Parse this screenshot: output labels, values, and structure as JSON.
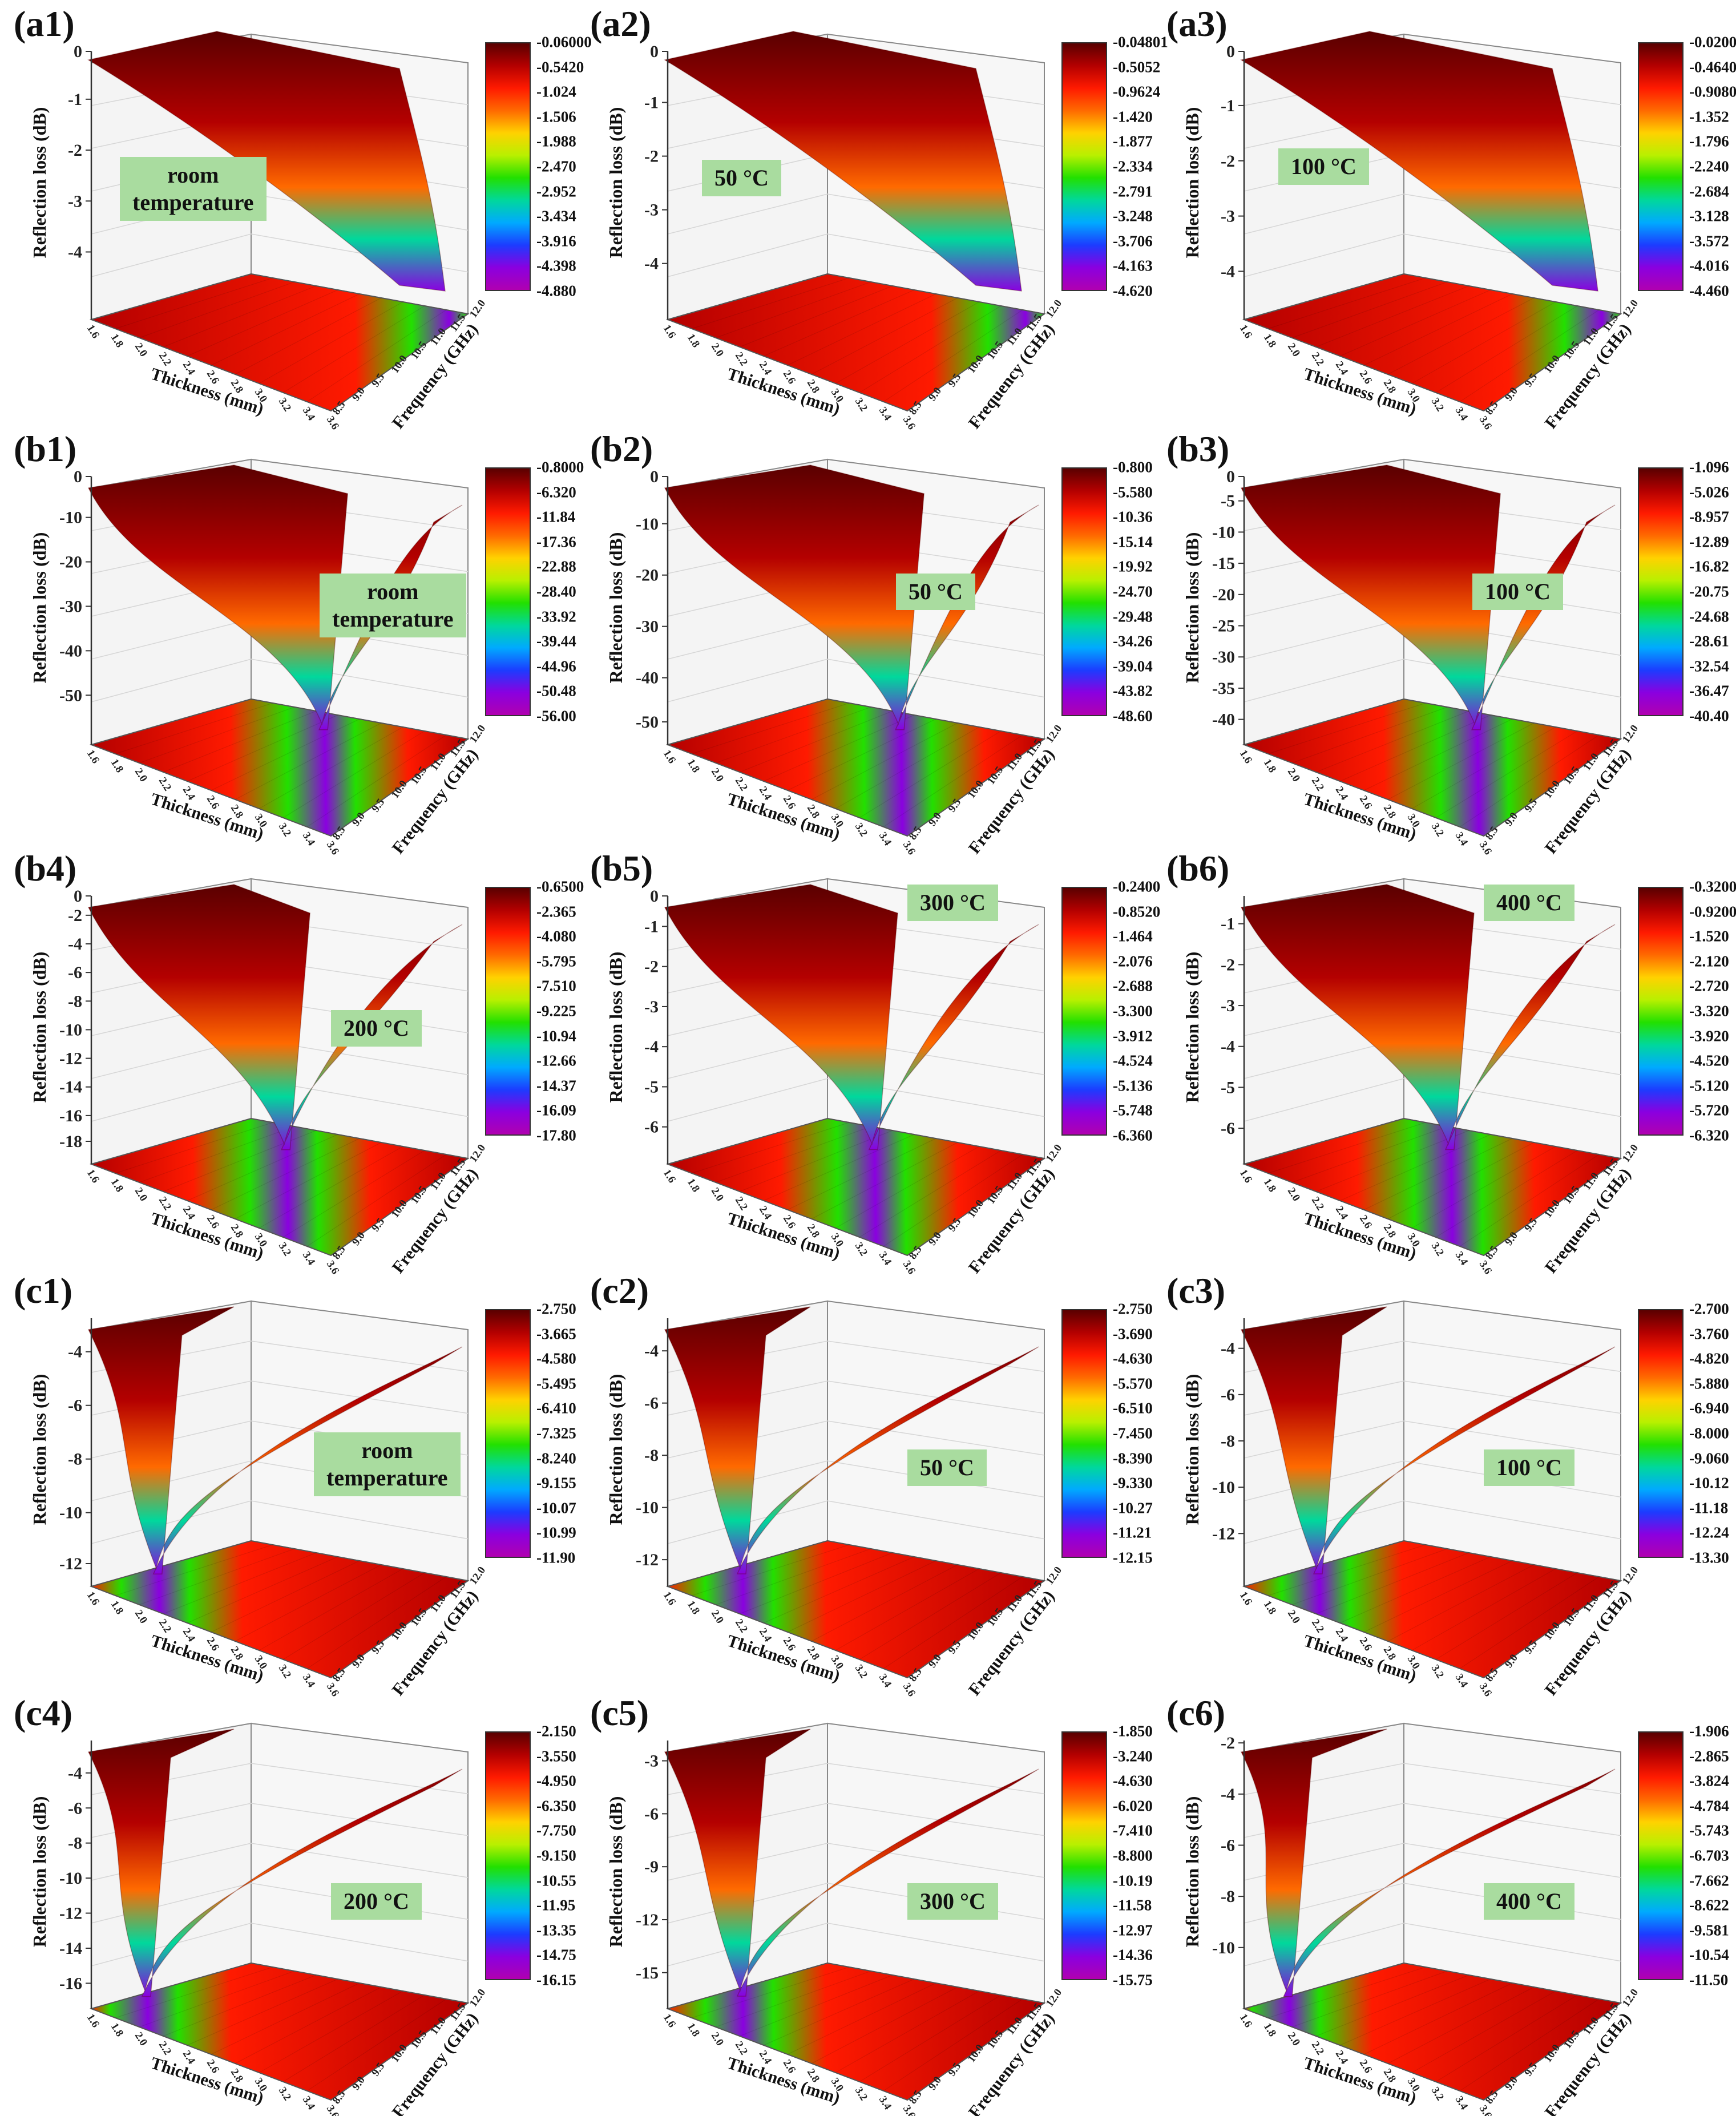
{
  "figure": {
    "colors": {
      "scale": [
        "#5a0000",
        "#b40000",
        "#ff1a00",
        "#ff6a00",
        "#ffd200",
        "#b8f000",
        "#22e000",
        "#00d89c",
        "#00aaff",
        "#1c3cff",
        "#8a00e0",
        "#b000b0"
      ],
      "badge_bg": "#a9dc9f"
    }
  },
  "chart_data": [
    {
      "id": "a1",
      "label": "(a1)",
      "type": "surface3d",
      "badge": [
        "room",
        "temperature"
      ],
      "colorbar": [
        "-0.06000",
        "-0.5420",
        "-1.024",
        "-1.506",
        "-1.988",
        "-2.470",
        "-2.952",
        "-3.434",
        "-3.916",
        "-4.398",
        "-4.880"
      ],
      "zticks": [
        "0",
        "-1",
        "-2",
        "-3",
        "-4"
      ],
      "zlim": [
        -4.88,
        -0.06
      ],
      "thickness_ticks": [
        "1.6",
        "1.8",
        "2.0",
        "2.2",
        "2.4",
        "2.6",
        "2.8",
        "3.0",
        "3.2",
        "3.4",
        "3.6"
      ],
      "frequency_ticks": [
        "8.5",
        "9.0",
        "9.5",
        "10.0",
        "10.5",
        "11.0",
        "11.5",
        "12.0"
      ],
      "xlabel": "Thickness (mm)",
      "ylabel": "Frequency (GHz)",
      "zlabel": "Reflection loss (dB)"
    },
    {
      "id": "a2",
      "label": "(a2)",
      "type": "surface3d",
      "badge": [
        "50 °C"
      ],
      "colorbar": [
        "-0.04801",
        "-0.5052",
        "-0.9624",
        "-1.420",
        "-1.877",
        "-2.334",
        "-2.791",
        "-3.248",
        "-3.706",
        "-4.163",
        "-4.620"
      ],
      "zticks": [
        "0",
        "-1",
        "-2",
        "-3",
        "-4"
      ],
      "zlim": [
        -4.62,
        -0.048
      ],
      "thickness_ticks": [
        "1.6",
        "1.8",
        "2.0",
        "2.2",
        "2.4",
        "2.6",
        "2.8",
        "3.0",
        "3.2",
        "3.4",
        "3.6"
      ],
      "frequency_ticks": [
        "8.5",
        "9.0",
        "9.5",
        "10.0",
        "10.5",
        "11.0",
        "11.5",
        "12.0"
      ],
      "xlabel": "Thickness (mm)",
      "ylabel": "Frequency (GHz)",
      "zlabel": "Reflection loss (dB)"
    },
    {
      "id": "a3",
      "label": "(a3)",
      "type": "surface3d",
      "badge": [
        "100 °C"
      ],
      "colorbar": [
        "-0.02000",
        "-0.4640",
        "-0.9080",
        "-1.352",
        "-1.796",
        "-2.240",
        "-2.684",
        "-3.128",
        "-3.572",
        "-4.016",
        "-4.460"
      ],
      "zticks": [
        "0",
        "-1",
        "-2",
        "-3",
        "-4"
      ],
      "zlim": [
        -4.46,
        -0.02
      ],
      "thickness_ticks": [
        "1.6",
        "1.8",
        "2.0",
        "2.2",
        "2.4",
        "2.6",
        "2.8",
        "3.0",
        "3.2",
        "3.4",
        "3.6"
      ],
      "frequency_ticks": [
        "8.5",
        "9.0",
        "9.5",
        "10.0",
        "10.5",
        "11.0",
        "11.5",
        "12.0"
      ],
      "xlabel": "Thickness (mm)",
      "ylabel": "Frequency (GHz)",
      "zlabel": "Reflection loss (dB)"
    },
    {
      "id": "b1",
      "label": "(b1)",
      "type": "surface3d",
      "badge": [
        "room",
        "temperature"
      ],
      "colorbar": [
        "-0.8000",
        "-6.320",
        "-11.84",
        "-17.36",
        "-22.88",
        "-28.40",
        "-33.92",
        "-39.44",
        "-44.96",
        "-50.48",
        "-56.00"
      ],
      "zticks": [
        "0",
        "-10",
        "-20",
        "-30",
        "-40",
        "-50"
      ],
      "zlim": [
        -56,
        -0.8
      ],
      "thickness_ticks": [
        "1.6",
        "1.8",
        "2.0",
        "2.2",
        "2.4",
        "2.6",
        "2.8",
        "3.0",
        "3.2",
        "3.4",
        "3.6"
      ],
      "frequency_ticks": [
        "8.5",
        "9.0",
        "9.5",
        "10.0",
        "10.5",
        "11.0",
        "11.5",
        "12.0"
      ],
      "xlabel": "Thickness (mm)",
      "ylabel": "Frequency (GHz)",
      "zlabel": "Reflection loss (dB)"
    },
    {
      "id": "b2",
      "label": "(b2)",
      "type": "surface3d",
      "badge": [
        "50 °C"
      ],
      "colorbar": [
        "-0.800",
        "-5.580",
        "-10.36",
        "-15.14",
        "-19.92",
        "-24.70",
        "-29.48",
        "-34.26",
        "-39.04",
        "-43.82",
        "-48.60"
      ],
      "zticks": [
        "0",
        "-10",
        "-20",
        "-30",
        "-40",
        "-50"
      ],
      "zlim": [
        -48.6,
        -0.8
      ],
      "thickness_ticks": [
        "1.6",
        "1.8",
        "2.0",
        "2.2",
        "2.4",
        "2.6",
        "2.8",
        "3.0",
        "3.2",
        "3.4",
        "3.6"
      ],
      "frequency_ticks": [
        "8.5",
        "9.0",
        "9.5",
        "10.0",
        "10.5",
        "11.0",
        "11.5",
        "12.0"
      ],
      "xlabel": "Thickness (mm)",
      "ylabel": "Frequency (GHz)",
      "zlabel": "Reflection loss (dB)"
    },
    {
      "id": "b3",
      "label": "(b3)",
      "type": "surface3d",
      "badge": [
        "100 °C"
      ],
      "colorbar": [
        "-1.096",
        "-5.026",
        "-8.957",
        "-12.89",
        "-16.82",
        "-20.75",
        "-24.68",
        "-28.61",
        "-32.54",
        "-36.47",
        "-40.40"
      ],
      "zticks": [
        "0",
        "-5",
        "-10",
        "-15",
        "-20",
        "-25",
        "-30",
        "-35",
        "-40"
      ],
      "zlim": [
        -40.4,
        -1.096
      ],
      "thickness_ticks": [
        "1.6",
        "1.8",
        "2.0",
        "2.2",
        "2.4",
        "2.6",
        "2.8",
        "3.0",
        "3.2",
        "3.4",
        "3.6"
      ],
      "frequency_ticks": [
        "8.5",
        "9.0",
        "9.5",
        "10.0",
        "10.5",
        "11.0",
        "11.5",
        "12.0"
      ],
      "xlabel": "Thickness (mm)",
      "ylabel": "Frequency (GHz)",
      "zlabel": "Reflection loss (dB)"
    },
    {
      "id": "b4",
      "label": "(b4)",
      "type": "surface3d",
      "badge": [
        "200 °C"
      ],
      "colorbar": [
        "-0.6500",
        "-2.365",
        "-4.080",
        "-5.795",
        "-7.510",
        "-9.225",
        "-10.94",
        "-12.66",
        "-14.37",
        "-16.09",
        "-17.80"
      ],
      "zticks": [
        "0",
        "-2",
        "-4",
        "-6",
        "-8",
        "-10",
        "-12",
        "-14",
        "-16",
        "-18"
      ],
      "zlim": [
        -17.8,
        -0.65
      ],
      "thickness_ticks": [
        "1.6",
        "1.8",
        "2.0",
        "2.2",
        "2.4",
        "2.6",
        "2.8",
        "3.0",
        "3.2",
        "3.4",
        "3.6"
      ],
      "frequency_ticks": [
        "8.5",
        "9.0",
        "9.5",
        "10.0",
        "10.5",
        "11.0",
        "11.5",
        "12.0"
      ],
      "xlabel": "Thickness (mm)",
      "ylabel": "Frequency (GHz)",
      "zlabel": "Reflection loss (dB)"
    },
    {
      "id": "b5",
      "label": "(b5)",
      "type": "surface3d",
      "badge": [
        "300 °C"
      ],
      "colorbar": [
        "-0.2400",
        "-0.8520",
        "-1.464",
        "-2.076",
        "-2.688",
        "-3.300",
        "-3.912",
        "-4.524",
        "-5.136",
        "-5.748",
        "-6.360"
      ],
      "zticks": [
        "0",
        "-1",
        "-2",
        "-3",
        "-4",
        "-5",
        "-6"
      ],
      "zlim": [
        -6.36,
        -0.24
      ],
      "thickness_ticks": [
        "1.6",
        "1.8",
        "2.0",
        "2.2",
        "2.4",
        "2.6",
        "2.8",
        "3.0",
        "3.2",
        "3.4",
        "3.6"
      ],
      "frequency_ticks": [
        "8.5",
        "9.0",
        "9.5",
        "10.0",
        "10.5",
        "11.0",
        "11.5",
        "12.0"
      ],
      "xlabel": "Thickness (mm)",
      "ylabel": "Frequency (GHz)",
      "zlabel": "Reflection loss (dB)"
    },
    {
      "id": "b6",
      "label": "(b6)",
      "type": "surface3d",
      "badge": [
        "400 °C"
      ],
      "colorbar": [
        "-0.3200",
        "-0.9200",
        "-1.520",
        "-2.120",
        "-2.720",
        "-3.320",
        "-3.920",
        "-4.520",
        "-5.120",
        "-5.720",
        "-6.320"
      ],
      "zticks": [
        "-1",
        "-2",
        "-3",
        "-4",
        "-5",
        "-6"
      ],
      "zlim": [
        -6.32,
        -0.32
      ],
      "thickness_ticks": [
        "1.6",
        "1.8",
        "2.0",
        "2.2",
        "2.4",
        "2.6",
        "2.8",
        "3.0",
        "3.2",
        "3.4",
        "3.6"
      ],
      "frequency_ticks": [
        "8.5",
        "9.0",
        "9.5",
        "10.0",
        "10.5",
        "11.0",
        "11.5",
        "12.0"
      ],
      "xlabel": "Thickness (mm)",
      "ylabel": "Frequency (GHz)",
      "zlabel": "Reflection loss (dB)"
    },
    {
      "id": "c1",
      "label": "(c1)",
      "type": "surface3d",
      "badge": [
        "room",
        "temperature"
      ],
      "colorbar": [
        "-2.750",
        "-3.665",
        "-4.580",
        "-5.495",
        "-6.410",
        "-7.325",
        "-8.240",
        "-9.155",
        "-10.07",
        "-10.99",
        "-11.90"
      ],
      "zticks": [
        "-4",
        "-6",
        "-8",
        "-10",
        "-12"
      ],
      "zlim": [
        -11.9,
        -2.75
      ],
      "thickness_ticks": [
        "1.6",
        "1.8",
        "2.0",
        "2.2",
        "2.4",
        "2.6",
        "2.8",
        "3.0",
        "3.2",
        "3.4",
        "3.6"
      ],
      "frequency_ticks": [
        "8.5",
        "9.0",
        "9.5",
        "10.0",
        "10.5",
        "11.0",
        "11.5",
        "12.0"
      ],
      "xlabel": "Thickness (mm)",
      "ylabel": "Frequency (GHz)",
      "zlabel": "Reflection loss (dB)"
    },
    {
      "id": "c2",
      "label": "(c2)",
      "type": "surface3d",
      "badge": [
        "50 °C"
      ],
      "colorbar": [
        "-2.750",
        "-3.690",
        "-4.630",
        "-5.570",
        "-6.510",
        "-7.450",
        "-8.390",
        "-9.330",
        "-10.27",
        "-11.21",
        "-12.15"
      ],
      "zticks": [
        "-4",
        "-6",
        "-8",
        "-10",
        "-12"
      ],
      "zlim": [
        -12.15,
        -2.75
      ],
      "thickness_ticks": [
        "1.6",
        "1.8",
        "2.0",
        "2.2",
        "2.4",
        "2.6",
        "2.8",
        "3.0",
        "3.2",
        "3.4",
        "3.6"
      ],
      "frequency_ticks": [
        "8.5",
        "9.0",
        "9.5",
        "10.0",
        "10.5",
        "11.0",
        "11.5",
        "12.0"
      ],
      "xlabel": "Thickness (mm)",
      "ylabel": "Frequency (GHz)",
      "zlabel": "Reflection loss (dB)"
    },
    {
      "id": "c3",
      "label": "(c3)",
      "type": "surface3d",
      "badge": [
        "100 °C"
      ],
      "colorbar": [
        "-2.700",
        "-3.760",
        "-4.820",
        "-5.880",
        "-6.940",
        "-8.000",
        "-9.060",
        "-10.12",
        "-11.18",
        "-12.24",
        "-13.30"
      ],
      "zticks": [
        "-4",
        "-6",
        "-8",
        "-10",
        "-12"
      ],
      "zlim": [
        -13.3,
        -2.7
      ],
      "thickness_ticks": [
        "1.6",
        "1.8",
        "2.0",
        "2.2",
        "2.4",
        "2.6",
        "2.8",
        "3.0",
        "3.2",
        "3.4",
        "3.6"
      ],
      "frequency_ticks": [
        "8.5",
        "9.0",
        "9.5",
        "10.0",
        "10.5",
        "11.0",
        "11.5",
        "12.0"
      ],
      "xlabel": "Thickness (mm)",
      "ylabel": "Frequency (GHz)",
      "zlabel": "Reflection loss (dB)"
    },
    {
      "id": "c4",
      "label": "(c4)",
      "type": "surface3d",
      "badge": [
        "200 °C"
      ],
      "colorbar": [
        "-2.150",
        "-3.550",
        "-4.950",
        "-6.350",
        "-7.750",
        "-9.150",
        "-10.55",
        "-11.95",
        "-13.35",
        "-14.75",
        "-16.15"
      ],
      "zticks": [
        "-4",
        "-6",
        "-8",
        "-10",
        "-12",
        "-14",
        "-16"
      ],
      "zlim": [
        -16.15,
        -2.15
      ],
      "thickness_ticks": [
        "1.6",
        "1.8",
        "2.0",
        "2.2",
        "2.4",
        "2.6",
        "2.8",
        "3.0",
        "3.2",
        "3.4",
        "3.6"
      ],
      "frequency_ticks": [
        "8.5",
        "9.0",
        "9.5",
        "10.0",
        "10.5",
        "11.0",
        "11.5",
        "12.0"
      ],
      "xlabel": "Thickness (mm)",
      "ylabel": "Frequency (GHz)",
      "zlabel": "Reflection loss (dB)"
    },
    {
      "id": "c5",
      "label": "(c5)",
      "type": "surface3d",
      "badge": [
        "300 °C"
      ],
      "colorbar": [
        "-1.850",
        "-3.240",
        "-4.630",
        "-6.020",
        "-7.410",
        "-8.800",
        "-10.19",
        "-11.58",
        "-12.97",
        "-14.36",
        "-15.75"
      ],
      "zticks": [
        "-3",
        "-6",
        "-9",
        "-12",
        "-15"
      ],
      "zlim": [
        -15.75,
        -1.85
      ],
      "thickness_ticks": [
        "1.6",
        "1.8",
        "2.0",
        "2.2",
        "2.4",
        "2.6",
        "2.8",
        "3.0",
        "3.2",
        "3.4",
        "3.6"
      ],
      "frequency_ticks": [
        "8.5",
        "9.0",
        "9.5",
        "10.0",
        "10.5",
        "11.0",
        "11.5",
        "12.0"
      ],
      "xlabel": "Thickness (mm)",
      "ylabel": "Frequency (GHz)",
      "zlabel": "Reflection loss (dB)"
    },
    {
      "id": "c6",
      "label": "(c6)",
      "type": "surface3d",
      "badge": [
        "400 °C"
      ],
      "colorbar": [
        "-1.906",
        "-2.865",
        "-3.824",
        "-4.784",
        "-5.743",
        "-6.703",
        "-7.662",
        "-8.622",
        "-9.581",
        "-10.54",
        "-11.50"
      ],
      "zticks": [
        "-2",
        "-4",
        "-6",
        "-8",
        "-10"
      ],
      "zlim": [
        -11.5,
        -1.906
      ],
      "thickness_ticks": [
        "1.6",
        "1.8",
        "2.0",
        "2.2",
        "2.4",
        "2.6",
        "2.8",
        "3.0",
        "3.2",
        "3.4",
        "3.6"
      ],
      "frequency_ticks": [
        "8.5",
        "9.0",
        "9.5",
        "10.0",
        "10.5",
        "11.0",
        "11.5",
        "12.0"
      ],
      "xlabel": "Thickness (mm)",
      "ylabel": "Frequency (GHz)",
      "zlabel": "Reflection loss (dB)"
    }
  ]
}
